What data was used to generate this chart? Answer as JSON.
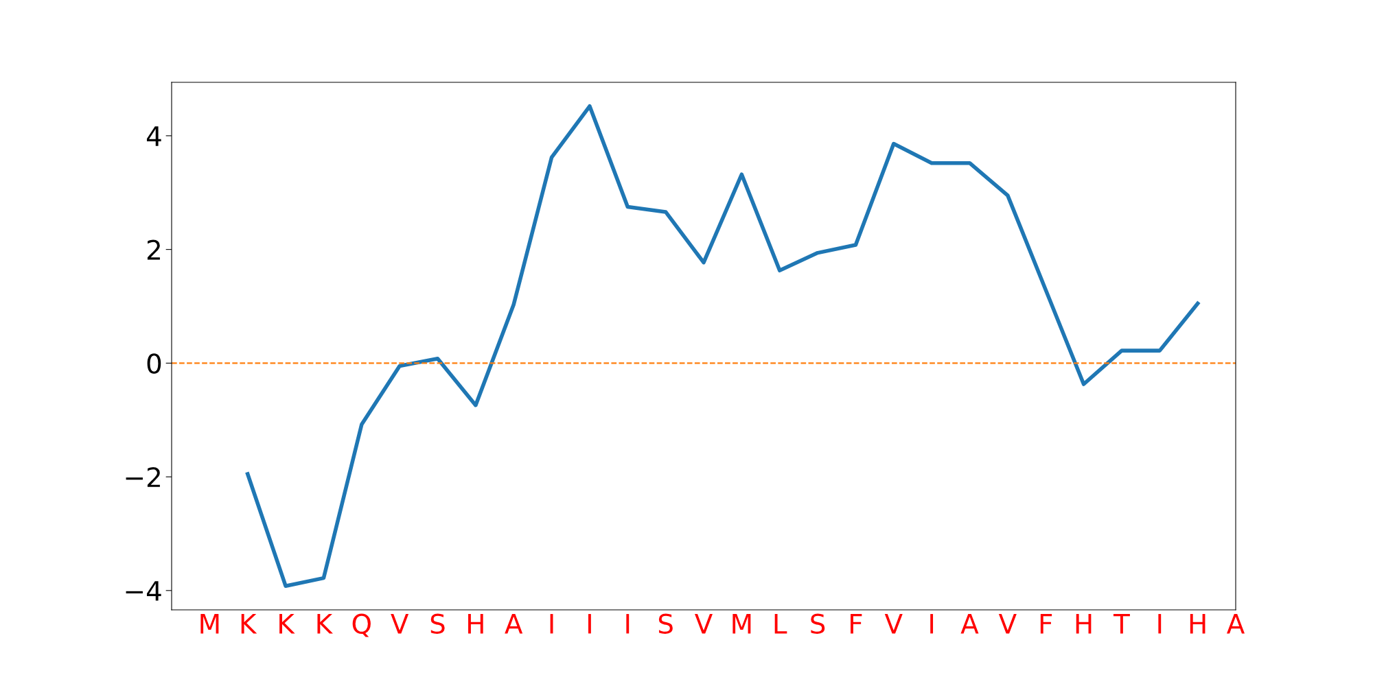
{
  "chart_data": {
    "type": "line",
    "categories": [
      "M",
      "K",
      "K",
      "K",
      "Q",
      "V",
      "S",
      "H",
      "A",
      "I",
      "I",
      "I",
      "S",
      "V",
      "M",
      "L",
      "S",
      "F",
      "V",
      "I",
      "A",
      "V",
      "F",
      "H",
      "T",
      "I",
      "H",
      "A"
    ],
    "series": [
      {
        "color": "#1f77b4",
        "values": [
          null,
          -1.95,
          -3.92,
          -3.78,
          -1.08,
          -0.05,
          0.08,
          -0.74,
          1.03,
          3.62,
          4.52,
          2.75,
          2.66,
          1.77,
          3.32,
          1.63,
          1.94,
          2.08,
          3.86,
          3.52,
          3.52,
          2.95,
          1.29,
          -0.37,
          0.22,
          0.22,
          1.05,
          null
        ]
      }
    ],
    "ylim": [
      -4.34,
      4.94
    ],
    "yticks": [
      {
        "value": -4,
        "label": "−4"
      },
      {
        "value": -2,
        "label": "−2"
      },
      0,
      2,
      4
    ],
    "ref_lines": [
      {
        "axis": "y",
        "value": 0,
        "color": "#ff7f0e",
        "line_style": "dashed"
      }
    ],
    "grid": false,
    "legend": false,
    "marker": "none",
    "line_style": "solid"
  }
}
